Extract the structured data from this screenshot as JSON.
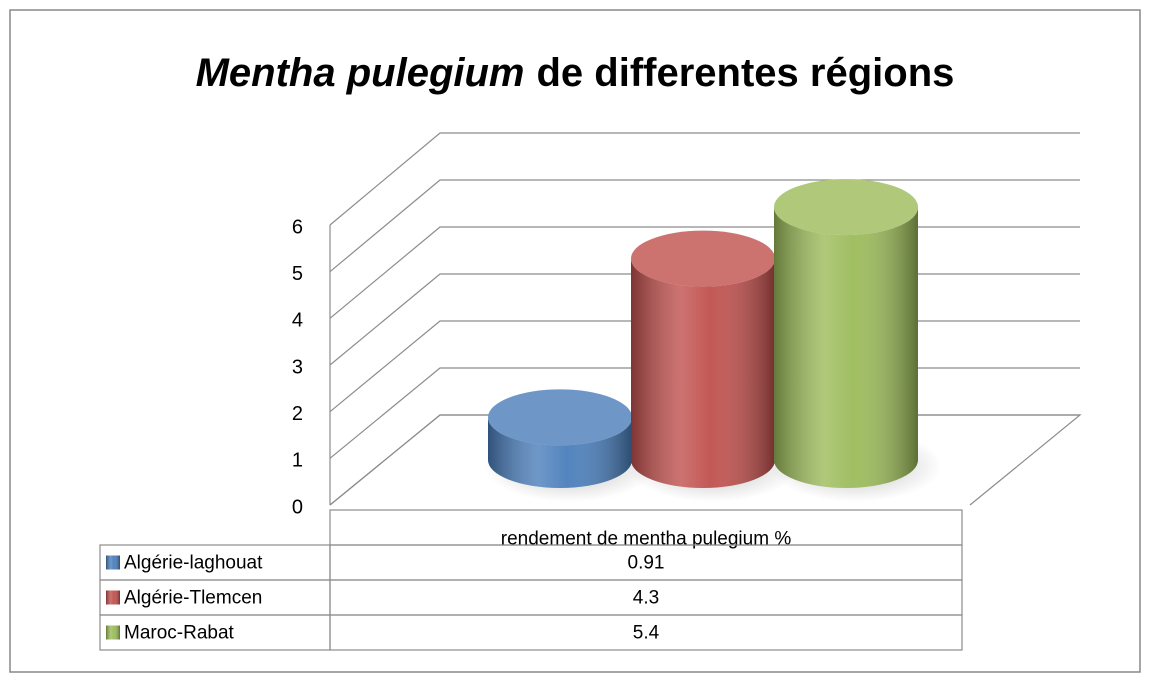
{
  "chart_data": {
    "type": "cylinder3d",
    "title": [
      "Mentha pulegium",
      "de differentes régions"
    ],
    "categories": [
      "rendement de mentha pulegium  %"
    ],
    "series": [
      {
        "name": "Algérie-laghouat",
        "color": "#4a7ebb",
        "values": [
          0.91
        ]
      },
      {
        "name": "Algérie-Tlemcen",
        "color": "#c0504d",
        "values": [
          4.3
        ]
      },
      {
        "name": "Maroc-Rabat",
        "color": "#9bbb59",
        "values": [
          5.4
        ]
      }
    ],
    "ylim": [
      0,
      6
    ],
    "yticks": [
      0,
      1,
      2,
      3,
      4,
      5,
      6
    ],
    "grid": true,
    "data_table": true
  }
}
